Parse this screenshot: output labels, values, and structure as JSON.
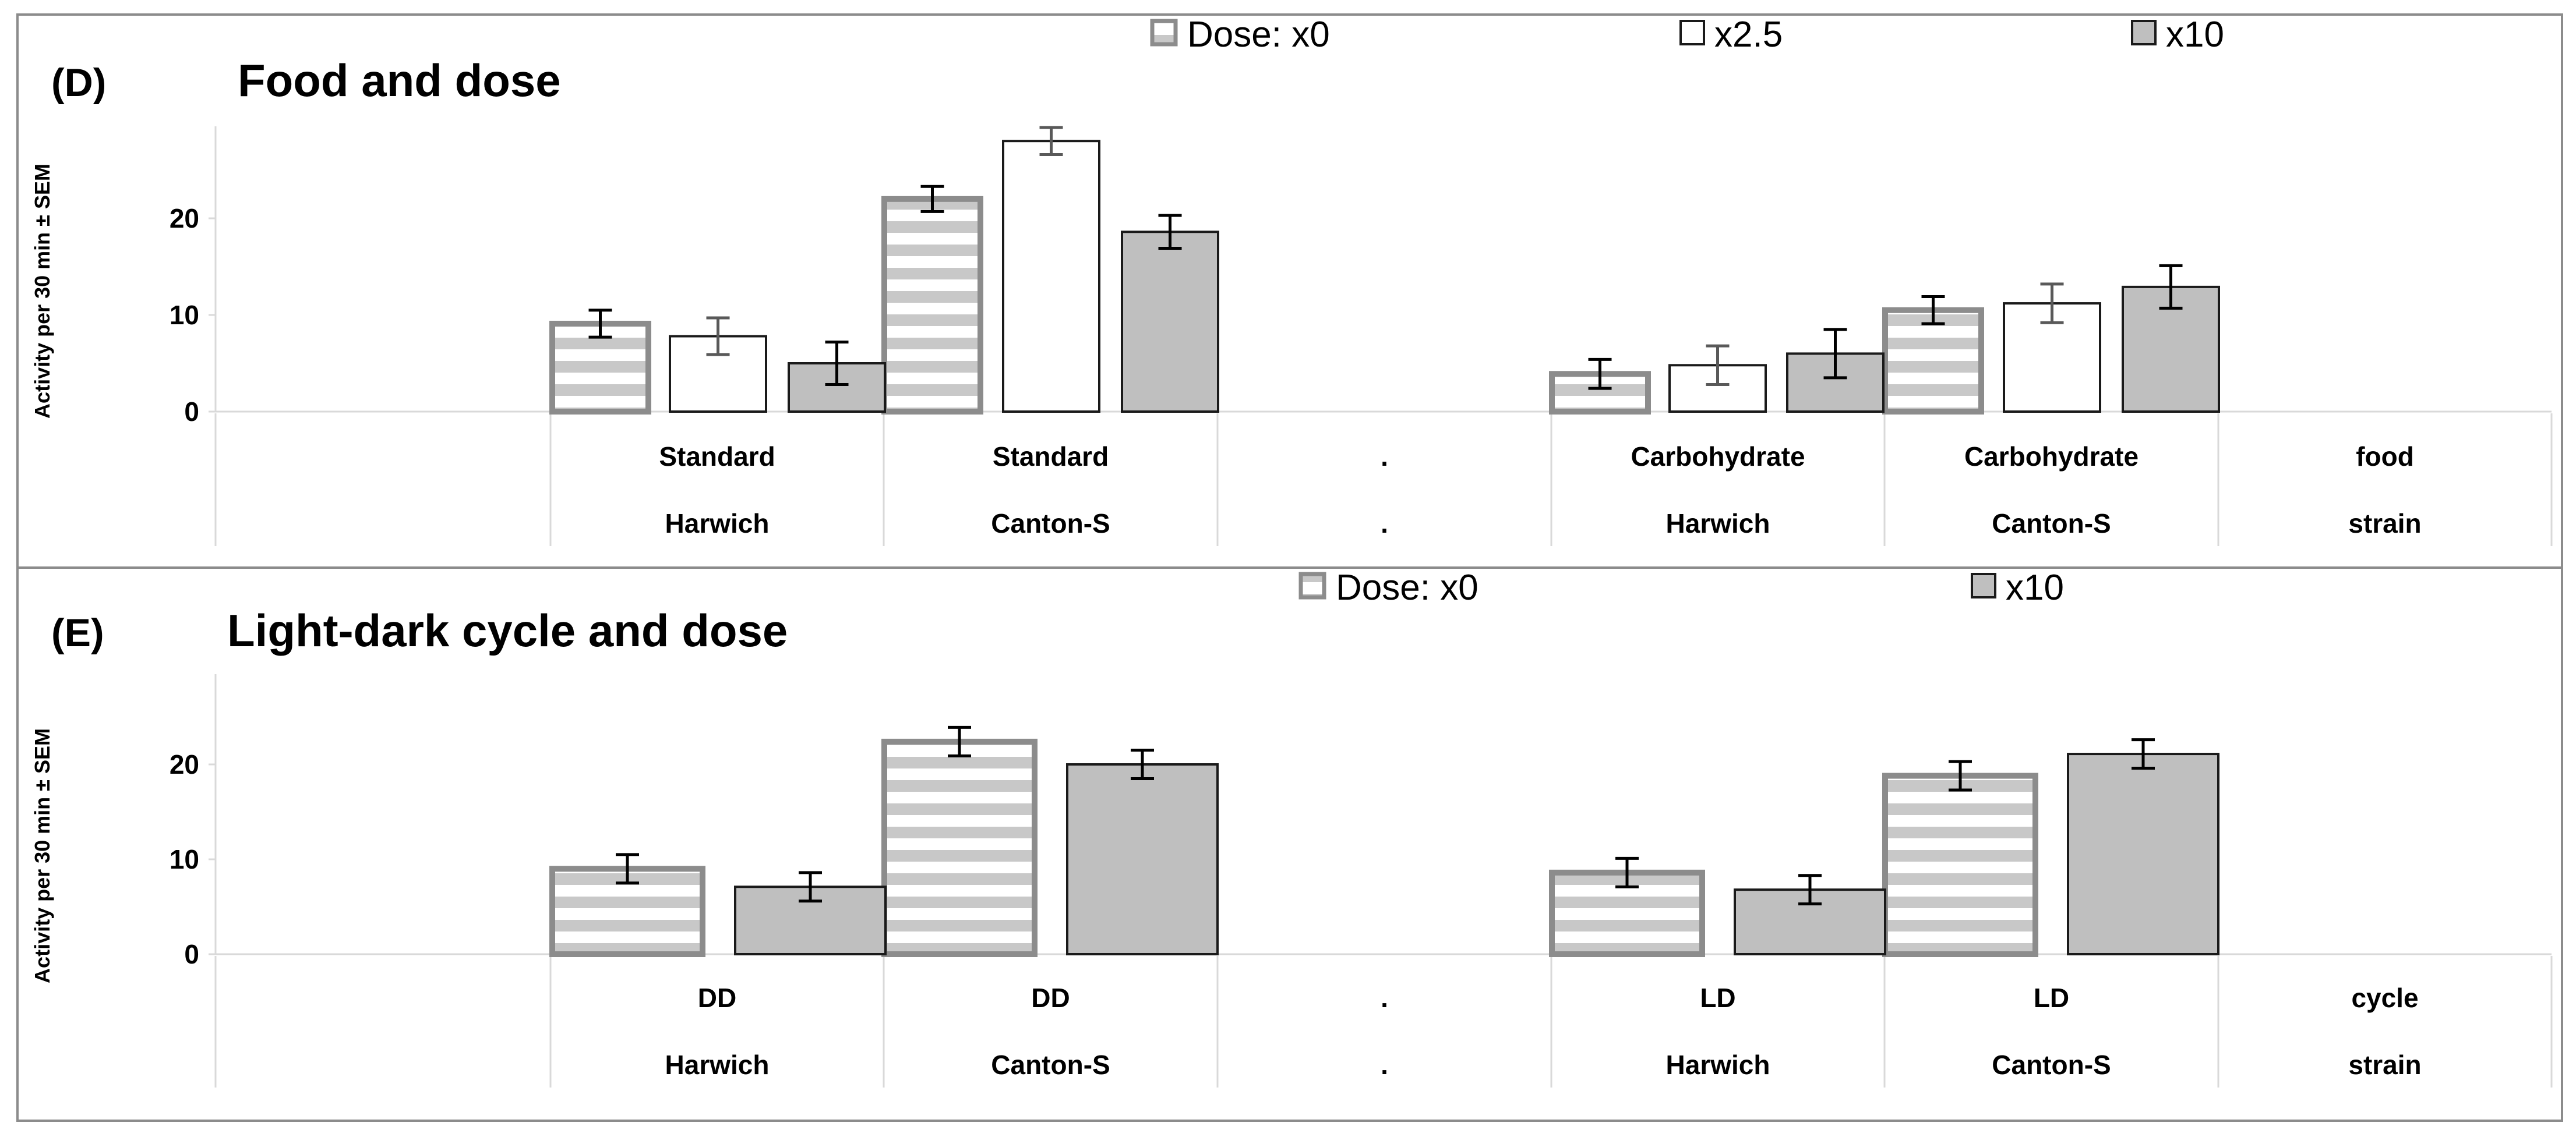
{
  "colors": {
    "frame": "#8c8c8c",
    "grid": "#d9d9d9",
    "stripe_light": "#ffffff",
    "stripe_dark": "#c8c8c8",
    "stripe_border": "#8c8c8c",
    "white_fill": "#ffffff",
    "gray_fill": "#bfbfbf",
    "bar_border": "#1a1a1a",
    "error_dark": "#000000",
    "error_gray": "#595959"
  },
  "chart_data": [
    {
      "type": "bar",
      "panel": "(D)",
      "title": "Food and dose",
      "ylabel": "Activity per 30  min ± SEM",
      "ylim": [
        0,
        30
      ],
      "yticks": [
        0,
        10,
        20
      ],
      "category_rows": [
        [
          "Standard",
          "Standard",
          ".",
          "Carbohydrate",
          "Carbohydrate",
          "food"
        ],
        [
          "Harwich",
          "Canton-S",
          ".",
          "Harwich",
          "Canton-S",
          "strain"
        ]
      ],
      "legend": {
        "position": "top",
        "items": [
          "Dose: x0",
          "x2.5",
          "x10"
        ]
      },
      "series": [
        {
          "name": "Dose: x0",
          "style": "striped",
          "values": [
            null,
            9.1,
            22.0,
            null,
            3.9,
            10.5,
            null
          ],
          "errors": [
            null,
            1.4,
            1.3,
            null,
            1.5,
            1.4,
            null
          ]
        },
        {
          "name": "x2.5",
          "style": "white",
          "values": [
            null,
            7.8,
            28.0,
            null,
            4.8,
            11.2,
            null
          ],
          "errors": [
            null,
            1.9,
            1.4,
            null,
            2.0,
            2.0,
            null
          ]
        },
        {
          "name": "x10",
          "style": "gray",
          "values": [
            null,
            5.0,
            18.6,
            null,
            6.0,
            12.9,
            null
          ],
          "errors": [
            null,
            2.2,
            1.7,
            null,
            2.5,
            2.2,
            null
          ]
        }
      ]
    },
    {
      "type": "bar",
      "panel": "(E)",
      "title": "Light-dark cycle and dose",
      "ylabel": "Activity per 30  min ± SEM",
      "ylim": [
        0,
        30
      ],
      "yticks": [
        0,
        10,
        20
      ],
      "category_rows": [
        [
          "DD",
          "DD",
          ".",
          "LD",
          "LD",
          "cycle"
        ],
        [
          "Harwich",
          "Canton-S",
          ".",
          "Harwich",
          "Canton-S",
          "strain"
        ]
      ],
      "legend": {
        "position": "top",
        "items": [
          "Dose: x0",
          "x10"
        ]
      },
      "series": [
        {
          "name": "Dose: x0",
          "style": "striped",
          "values": [
            null,
            9.0,
            22.4,
            null,
            8.6,
            18.8,
            null
          ],
          "errors": [
            null,
            1.5,
            1.5,
            null,
            1.5,
            1.5,
            null
          ]
        },
        {
          "name": "x10",
          "style": "gray",
          "values": [
            null,
            7.1,
            20.0,
            null,
            6.8,
            21.1,
            null
          ],
          "errors": [
            null,
            1.5,
            1.5,
            null,
            1.5,
            1.5,
            null
          ]
        }
      ]
    }
  ]
}
